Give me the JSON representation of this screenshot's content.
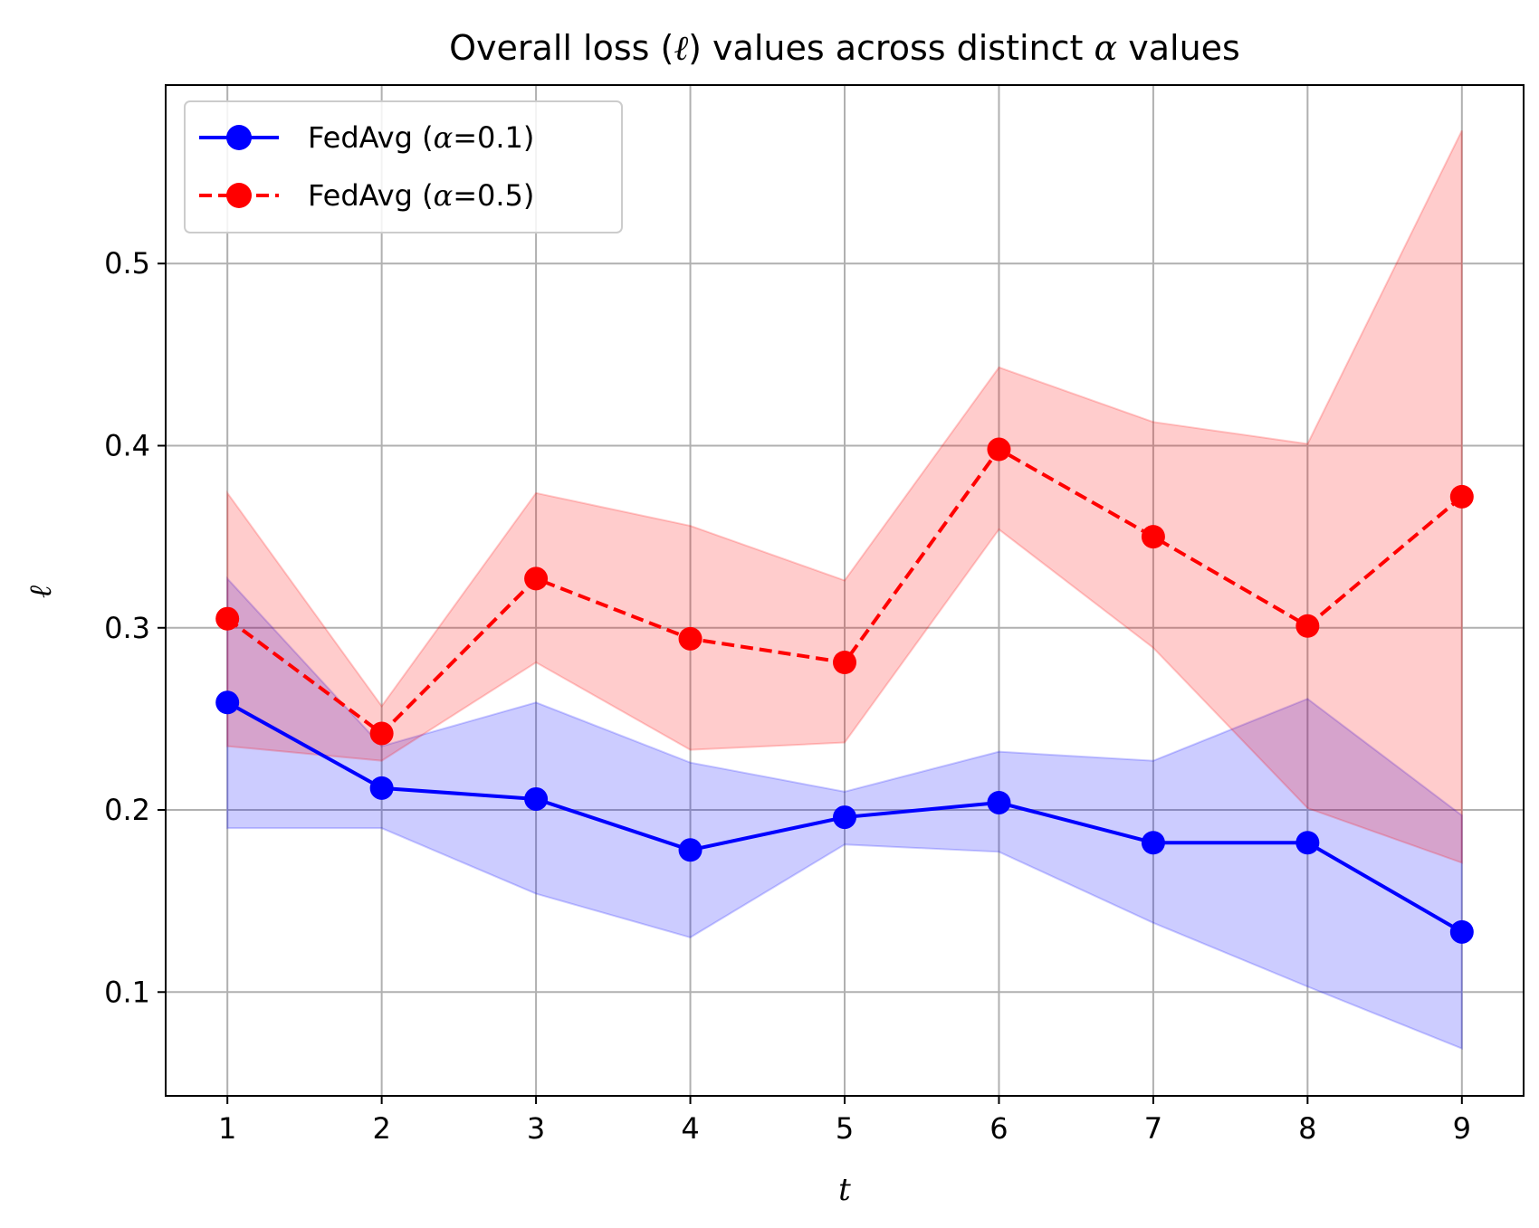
{
  "chart_data": {
    "type": "line",
    "title": "Overall loss (ℓ) values across distinct α values",
    "xlabel": "t",
    "ylabel": "ℓ",
    "x": [
      1,
      2,
      3,
      4,
      5,
      6,
      7,
      8,
      9
    ],
    "xlim": [
      0.6,
      9.4
    ],
    "ylim": [
      0.043,
      0.598
    ],
    "xticks": [
      1,
      2,
      3,
      4,
      5,
      6,
      7,
      8,
      9
    ],
    "yticks": [
      0.1,
      0.2,
      0.3,
      0.4,
      0.5
    ],
    "ytick_labels": [
      "0.1",
      "0.2",
      "0.3",
      "0.4",
      "0.5"
    ],
    "grid": true,
    "legend_position": "top-left",
    "series": [
      {
        "name": "FedAvg (α=0.1)",
        "legend_prefix": "FedAvg (",
        "legend_greek": "α",
        "legend_suffix": "=0.1)",
        "color": "#0000ff",
        "line_style": "solid",
        "values": [
          0.259,
          0.212,
          0.206,
          0.178,
          0.196,
          0.204,
          0.182,
          0.182,
          0.133
        ],
        "upper": [
          0.327,
          0.235,
          0.259,
          0.226,
          0.21,
          0.232,
          0.227,
          0.261,
          0.197
        ],
        "lower": [
          0.19,
          0.19,
          0.154,
          0.13,
          0.181,
          0.177,
          0.138,
          0.103,
          0.069
        ]
      },
      {
        "name": "FedAvg (α=0.5)",
        "legend_prefix": "FedAvg (",
        "legend_greek": "α",
        "legend_suffix": "=0.5)",
        "color": "#ff0000",
        "line_style": "dashed",
        "values": [
          0.305,
          0.242,
          0.327,
          0.294,
          0.281,
          0.398,
          0.35,
          0.301,
          0.372
        ],
        "upper": [
          0.374,
          0.257,
          0.374,
          0.356,
          0.326,
          0.443,
          0.413,
          0.401,
          0.573
        ],
        "lower": [
          0.235,
          0.227,
          0.281,
          0.233,
          0.237,
          0.354,
          0.289,
          0.201,
          0.171
        ]
      }
    ]
  }
}
